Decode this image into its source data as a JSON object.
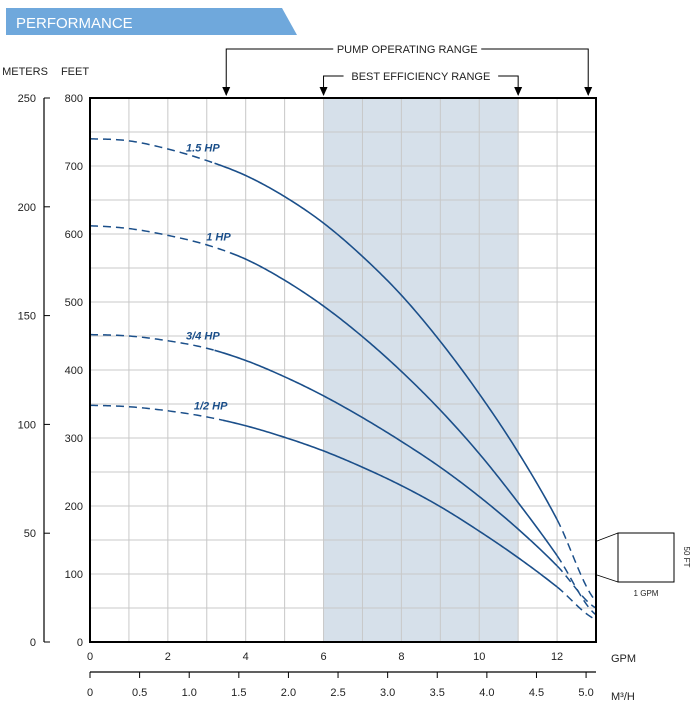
{
  "header": {
    "title": "PERFORMANCE"
  },
  "colors": {
    "banner": "#6fa8dc",
    "curve": "#1b4f8a",
    "band": "#d6e0ea",
    "grid": "#c8c8c8",
    "axis": "#000000"
  },
  "chart_data": {
    "type": "line",
    "title": "",
    "x_axis_primary": {
      "label": "GPM",
      "range": [
        0,
        13
      ],
      "ticks": [
        "0",
        "2",
        "4",
        "6",
        "8",
        "10",
        "12"
      ]
    },
    "x_axis_secondary": {
      "label": "M³/H",
      "range": [
        0,
        5.1
      ],
      "ticks": [
        "0",
        "0.5",
        "1.0",
        "1.5",
        "2.0",
        "2.5",
        "3.0",
        "3.5",
        "4.0",
        "4.5",
        "5.0"
      ]
    },
    "y_axis_left": {
      "label": "METERS",
      "range": [
        0,
        250
      ],
      "ticks": [
        "0",
        "50",
        "100",
        "150",
        "200",
        "250"
      ]
    },
    "y_axis_right": {
      "label": "FEET",
      "range": [
        0,
        800
      ],
      "ticks": [
        "0",
        "100",
        "200",
        "300",
        "400",
        "500",
        "600",
        "700",
        "800"
      ]
    },
    "grid": true,
    "annotations": {
      "pump_operating_range": {
        "label": "PUMP OPERATING RANGE",
        "x": [
          3.5,
          12.8
        ]
      },
      "best_efficiency_range": {
        "label": "BEST EFFICIENCY RANGE",
        "x": [
          6,
          11
        ]
      }
    },
    "scale_box": {
      "x_label": "1 GPM",
      "y_label": "50 FT"
    },
    "series": [
      {
        "name": "1.5 HP",
        "x": [
          0,
          1,
          2,
          3,
          4,
          5,
          6,
          7,
          8,
          9,
          10,
          11,
          12,
          13
        ],
        "y": [
          740,
          737,
          725,
          708,
          686,
          655,
          616,
          567,
          510,
          442,
          365,
          279,
          180,
          60
        ],
        "dashed_until": 3.2,
        "dashed_from": 12
      },
      {
        "name": "1 HP",
        "x": [
          0,
          1,
          2,
          3,
          4,
          5,
          6,
          7,
          8,
          9,
          10,
          11,
          12,
          13
        ],
        "y": [
          612,
          608,
          598,
          584,
          563,
          532,
          494,
          449,
          398,
          341,
          277,
          205,
          127,
          40
        ],
        "dashed_until": 3.6,
        "dashed_from": 12
      },
      {
        "name": "3/4 HP",
        "x": [
          0,
          1,
          2,
          3,
          4,
          5,
          6,
          7,
          8,
          9,
          10,
          11,
          12,
          13
        ],
        "y": [
          452,
          450,
          443,
          432,
          414,
          390,
          362,
          330,
          295,
          257,
          214,
          166,
          112,
          50
        ],
        "dashed_until": 3.2,
        "dashed_from": 12
      },
      {
        "name": "1/2 HP",
        "x": [
          0,
          1,
          2,
          3,
          4,
          5,
          6,
          7,
          8,
          9,
          10,
          11,
          12,
          13
        ],
        "y": [
          348,
          346,
          340,
          331,
          318,
          301,
          281,
          257,
          230,
          199,
          163,
          124,
          81,
          33
        ],
        "dashed_until": 3.4,
        "dashed_from": 12
      }
    ]
  }
}
